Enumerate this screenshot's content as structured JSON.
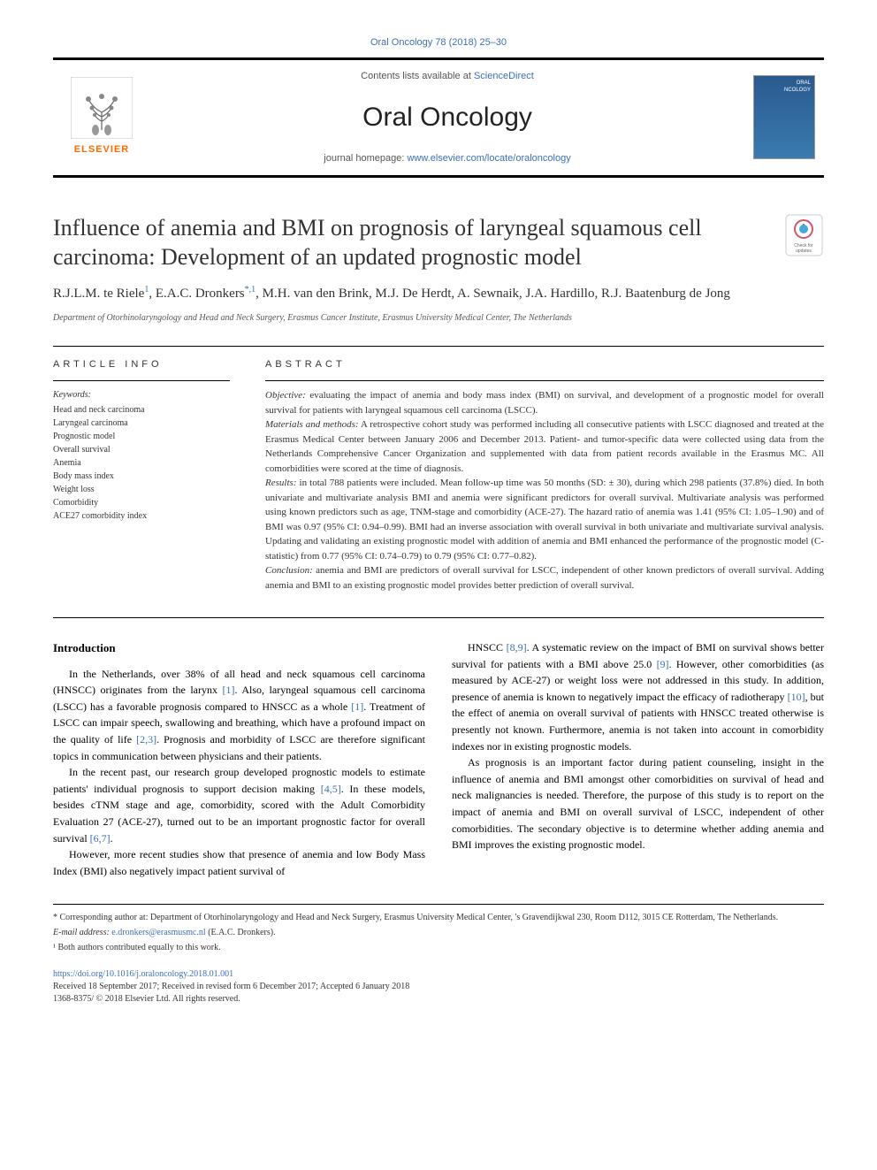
{
  "journal_ref": "Oral Oncology 78 (2018) 25–30",
  "header": {
    "contents_text": "Contents lists available at ",
    "sciencedirect": "ScienceDirect",
    "journal_title": "Oral Oncology",
    "homepage_prefix": "journal homepage: ",
    "homepage_url": "www.elsevier.com/locate/oraloncology",
    "elsevier_text": "ELSEVIER"
  },
  "article_title": "Influence of anemia and BMI on prognosis of laryngeal squamous cell carcinoma: Development of an updated prognostic model",
  "authors_html": "R.J.L.M. te Riele<sup>1</sup>, E.A.C. Dronkers<sup>*,1</sup>, M.H. van den Brink, M.J. De Herdt, A. Sewnaik, J.A. Hardillo, R.J. Baatenburg de Jong",
  "affiliation": "Department of Otorhinolaryngology and Head and Neck Surgery, Erasmus Cancer Institute, Erasmus University Medical Center, The Netherlands",
  "article_info_heading": "ARTICLE INFO",
  "keywords_label": "Keywords:",
  "keywords": [
    "Head and neck carcinoma",
    "Laryngeal carcinoma",
    "Prognostic model",
    "Overall survival",
    "Anemia",
    "Body mass index",
    "Weight loss",
    "Comorbidity",
    "ACE27 comorbidity index"
  ],
  "abstract_heading": "ABSTRACT",
  "abstract": {
    "objective_label": "Objective:",
    "objective": " evaluating the impact of anemia and body mass index (BMI) on survival, and development of a prognostic model for overall survival for patients with laryngeal squamous cell carcinoma (LSCC).",
    "materials_label": "Materials and methods:",
    "materials": " A retrospective cohort study was performed including all consecutive patients with LSCC diagnosed and treated at the Erasmus Medical Center between January 2006 and December 2013. Patient- and tumor-specific data were collected using data from the Netherlands Comprehensive Cancer Organization and supplemented with data from patient records available in the Erasmus MC. All comorbidities were scored at the time of diagnosis.",
    "results_label": "Results:",
    "results": " in total 788 patients were included. Mean follow-up time was 50 months (SD: ± 30), during which 298 patients (37.8%) died. In both univariate and multivariate analysis BMI and anemia were significant predictors for overall survival. Multivariate analysis was performed using known predictors such as age, TNM-stage and comorbidity (ACE-27). The hazard ratio of anemia was 1.41 (95% CI: 1.05–1.90) and of BMI was 0.97 (95% CI: 0.94–0.99). BMI had an inverse association with overall survival in both univariate and multivariate survival analysis. Updating and validating an existing prognostic model with addition of anemia and BMI enhanced the performance of the prognostic model (C-statistic) from 0.77 (95% CI: 0.74–0.79) to 0.79 (95% CI: 0.77–0.82).",
    "conclusion_label": "Conclusion:",
    "conclusion": " anemia and BMI are predictors of overall survival for LSCC, independent of other known predictors of overall survival. Adding anemia and BMI to an existing prognostic model provides better prediction of overall survival."
  },
  "introduction_heading": "Introduction",
  "intro_col1": [
    "In the Netherlands, over 38% of all head and neck squamous cell carcinoma (HNSCC) originates from the larynx [1]. Also, laryngeal squamous cell carcinoma (LSCC) has a favorable prognosis compared to HNSCC as a whole [1]. Treatment of LSCC can impair speech, swallowing and breathing, which have a profound impact on the quality of life [2,3]. Prognosis and morbidity of LSCC are therefore significant topics in communication between physicians and their patients.",
    "In the recent past, our research group developed prognostic models to estimate patients' individual prognosis to support decision making [4,5]. In these models, besides cTNM stage and age, comorbidity, scored with the Adult Comorbidity Evaluation 27 (ACE-27), turned out to be an important prognostic factor for overall survival [6,7].",
    "However, more recent studies show that presence of anemia and low Body Mass Index (BMI) also negatively impact patient survival of"
  ],
  "intro_col2": [
    "HNSCC [8,9]. A systematic review on the impact of BMI on survival shows better survival for patients with a BMI above 25.0 [9]. However, other comorbidities (as measured by ACE-27) or weight loss were not addressed in this study. In addition, presence of anemia is known to negatively impact the efficacy of radiotherapy [10], but the effect of anemia on overall survival of patients with HNSCC treated otherwise is presently not known. Furthermore, anemia is not taken into account in comorbidity indexes nor in existing prognostic models.",
    "As prognosis is an important factor during patient counseling, insight in the influence of anemia and BMI amongst other comorbidities on survival of head and neck malignancies is needed. Therefore, the purpose of this study is to report on the impact of anemia and BMI on overall survival of LSCC, independent of other comorbidities. The secondary objective is to determine whether adding anemia and BMI improves the existing prognostic model."
  ],
  "footnotes": {
    "corresponding": "* Corresponding author at: Department of Otorhinolaryngology and Head and Neck Surgery, Erasmus University Medical Center, 's Gravendijkwal 230, Room D112, 3015 CE Rotterdam, The Netherlands.",
    "email_label": "E-mail address: ",
    "email": "e.dronkers@erasmusmc.nl",
    "email_suffix": " (E.A.C. Dronkers).",
    "contrib": "¹ Both authors contributed equally to this work."
  },
  "doi_block": {
    "doi": "https://doi.org/10.1016/j.oraloncology.2018.01.001",
    "received": "Received 18 September 2017; Received in revised form 6 December 2017; Accepted 6 January 2018",
    "copyright": "1368-8375/ © 2018 Elsevier Ltd. All rights reserved."
  },
  "colors": {
    "link": "#3b6fb6",
    "elsevier": "#ff6b00",
    "text": "#333333",
    "cover_bg_top": "#2a5a8f",
    "cover_bg_bot": "#3a7aaf"
  }
}
